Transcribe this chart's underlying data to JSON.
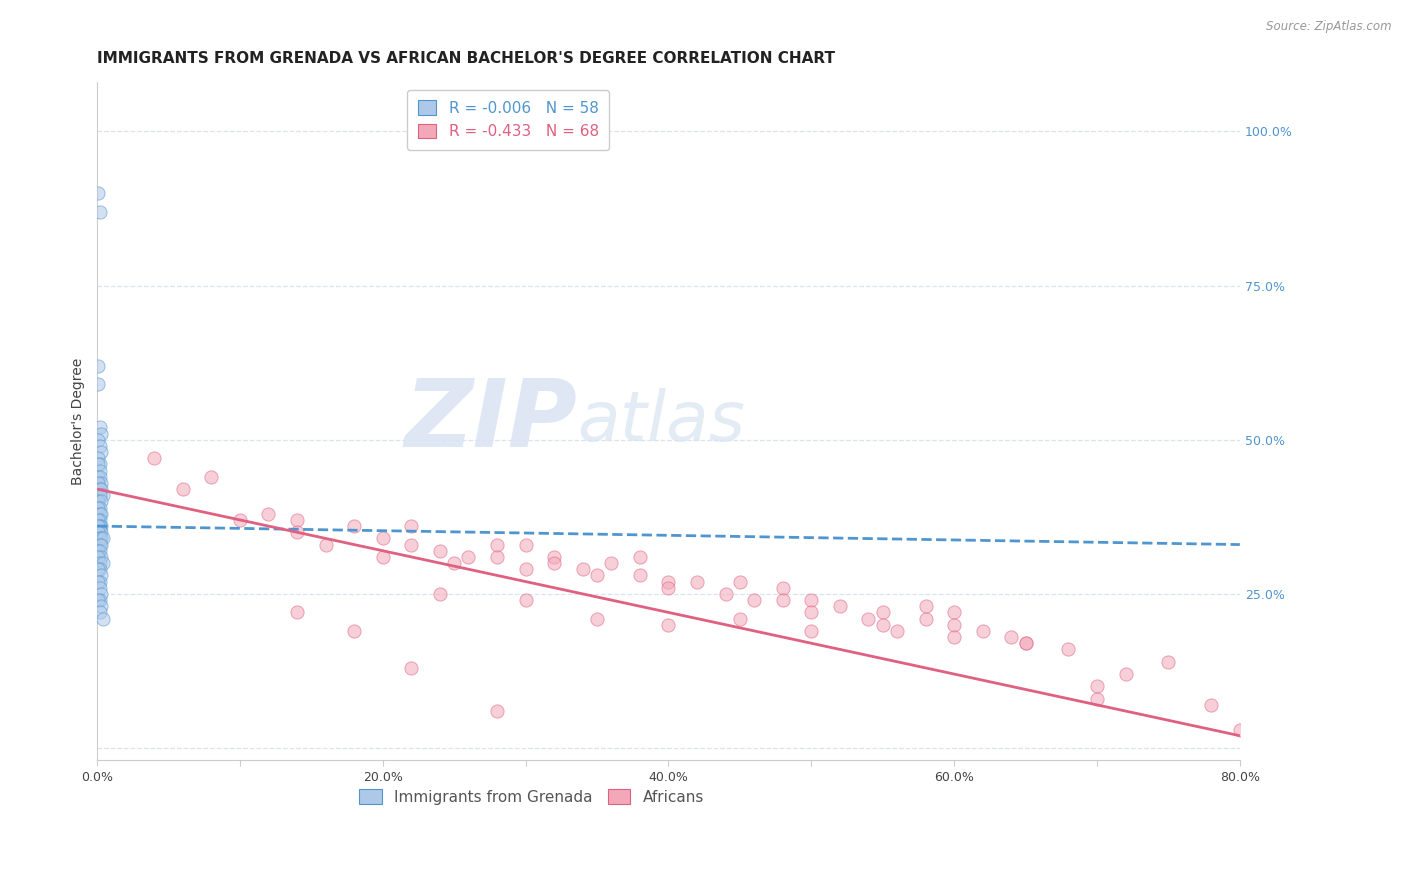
{
  "title": "IMMIGRANTS FROM GRENADA VS AFRICAN BACHELOR'S DEGREE CORRELATION CHART",
  "source": "Source: ZipAtlas.com",
  "ylabel": "Bachelor's Degree",
  "xlim": [
    0.0,
    0.8
  ],
  "ylim": [
    -0.02,
    1.08
  ],
  "right_yticks": [
    1.0,
    0.75,
    0.5,
    0.25
  ],
  "right_yticklabels": [
    "100.0%",
    "75.0%",
    "50.0%",
    "25.0%"
  ],
  "xticks": [
    0.0,
    0.1,
    0.2,
    0.3,
    0.4,
    0.5,
    0.6,
    0.7,
    0.8
  ],
  "xticklabels": [
    "0.0%",
    "",
    "20.0%",
    "",
    "40.0%",
    "",
    "60.0%",
    "",
    "80.0%"
  ],
  "legend_blue_r": "R = -0.006",
  "legend_blue_n": "N = 58",
  "legend_pink_r": "R = -0.433",
  "legend_pink_n": "N = 68",
  "blue_color": "#adc8e8",
  "pink_color": "#f2a8b8",
  "blue_line_color": "#4f96d0",
  "pink_line_color": "#e06080",
  "grid_color": "#d8e4f0",
  "watermark_zip": "ZIP",
  "watermark_atlas": "atlas",
  "blue_scatter_x": [
    0.001,
    0.002,
    0.001,
    0.001,
    0.002,
    0.003,
    0.001,
    0.002,
    0.003,
    0.001,
    0.002,
    0.001,
    0.002,
    0.001,
    0.002,
    0.003,
    0.001,
    0.002,
    0.003,
    0.004,
    0.002,
    0.001,
    0.003,
    0.002,
    0.001,
    0.002,
    0.003,
    0.002,
    0.001,
    0.003,
    0.002,
    0.001,
    0.002,
    0.003,
    0.001,
    0.002,
    0.003,
    0.004,
    0.002,
    0.003,
    0.001,
    0.002,
    0.003,
    0.001,
    0.002,
    0.004,
    0.002,
    0.001,
    0.003,
    0.002,
    0.001,
    0.002,
    0.003,
    0.002,
    0.001,
    0.003,
    0.002,
    0.004
  ],
  "blue_scatter_y": [
    0.9,
    0.87,
    0.62,
    0.59,
    0.52,
    0.51,
    0.5,
    0.49,
    0.48,
    0.47,
    0.46,
    0.46,
    0.45,
    0.44,
    0.44,
    0.43,
    0.43,
    0.42,
    0.42,
    0.41,
    0.41,
    0.4,
    0.4,
    0.39,
    0.39,
    0.38,
    0.38,
    0.37,
    0.37,
    0.36,
    0.36,
    0.36,
    0.35,
    0.35,
    0.35,
    0.34,
    0.34,
    0.34,
    0.33,
    0.33,
    0.32,
    0.32,
    0.31,
    0.31,
    0.3,
    0.3,
    0.29,
    0.29,
    0.28,
    0.27,
    0.27,
    0.26,
    0.25,
    0.24,
    0.24,
    0.23,
    0.22,
    0.21
  ],
  "pink_scatter_x": [
    0.04,
    0.06,
    0.08,
    0.1,
    0.12,
    0.14,
    0.14,
    0.16,
    0.18,
    0.2,
    0.2,
    0.22,
    0.22,
    0.24,
    0.25,
    0.26,
    0.28,
    0.28,
    0.3,
    0.3,
    0.32,
    0.32,
    0.34,
    0.35,
    0.36,
    0.38,
    0.38,
    0.4,
    0.4,
    0.42,
    0.44,
    0.45,
    0.46,
    0.48,
    0.48,
    0.5,
    0.5,
    0.52,
    0.54,
    0.55,
    0.56,
    0.58,
    0.58,
    0.6,
    0.6,
    0.62,
    0.64,
    0.65,
    0.68,
    0.7,
    0.72,
    0.75,
    0.78,
    0.8,
    0.14,
    0.18,
    0.24,
    0.3,
    0.35,
    0.4,
    0.45,
    0.5,
    0.55,
    0.6,
    0.65,
    0.7,
    0.22,
    0.28
  ],
  "pink_scatter_y": [
    0.47,
    0.42,
    0.44,
    0.37,
    0.38,
    0.37,
    0.35,
    0.33,
    0.36,
    0.34,
    0.31,
    0.33,
    0.36,
    0.32,
    0.3,
    0.31,
    0.33,
    0.31,
    0.33,
    0.29,
    0.31,
    0.3,
    0.29,
    0.28,
    0.3,
    0.28,
    0.31,
    0.27,
    0.26,
    0.27,
    0.25,
    0.27,
    0.24,
    0.26,
    0.24,
    0.24,
    0.22,
    0.23,
    0.21,
    0.22,
    0.19,
    0.21,
    0.23,
    0.2,
    0.22,
    0.19,
    0.18,
    0.17,
    0.16,
    0.1,
    0.12,
    0.14,
    0.07,
    0.03,
    0.22,
    0.19,
    0.25,
    0.24,
    0.21,
    0.2,
    0.21,
    0.19,
    0.2,
    0.18,
    0.17,
    0.08,
    0.13,
    0.06
  ],
  "blue_trend_x": [
    0.0,
    0.8
  ],
  "blue_trend_y": [
    0.36,
    0.33
  ],
  "pink_trend_x": [
    0.0,
    0.8
  ],
  "pink_trend_y": [
    0.42,
    0.02
  ],
  "background_color": "#ffffff",
  "title_fontsize": 11,
  "axis_label_fontsize": 10,
  "tick_fontsize": 9,
  "legend_fontsize": 11,
  "marker_size": 90,
  "marker_alpha": 0.55,
  "grid_yticks": [
    0.0,
    0.25,
    0.5,
    0.75,
    1.0
  ]
}
